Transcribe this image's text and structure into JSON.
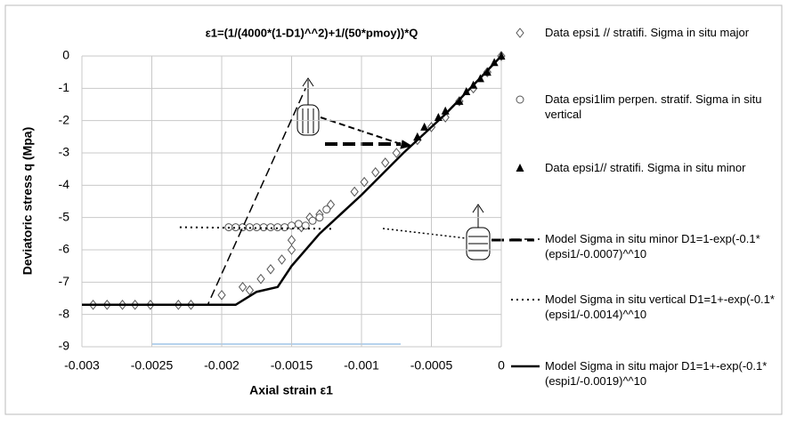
{
  "chart_data": {
    "type": "scatter",
    "title": "ε1=(1/(4000*(1-D1)^^2)+1/(50*pmoy))*Q",
    "x_label": "Axial strain ε1",
    "y_label": "Deviatoric stress q (Mpa)",
    "xlim": [
      -0.003,
      0
    ],
    "xticks": [
      -0.003,
      -0.0025,
      -0.002,
      -0.0015,
      -0.001,
      -0.0005,
      0
    ],
    "ylim": [
      -9,
      0
    ],
    "yticks": [
      0,
      -1,
      -2,
      -3,
      -4,
      -5,
      -6,
      -7,
      -8,
      -9
    ],
    "grid": true,
    "series": [
      {
        "name": "Data epsi1 // stratifi. Sigma in situ major",
        "color": "#555555",
        "marker": "diamond",
        "x": [
          -0.00292,
          -0.00282,
          -0.00271,
          -0.00262,
          -0.00251,
          -0.00231,
          -0.00222,
          -0.002,
          -0.00185,
          -0.0018,
          -0.00172,
          -0.00165,
          -0.00157,
          -0.0015,
          -0.0015,
          -0.00143,
          -0.00137,
          -0.0013,
          -0.00122,
          -0.00105,
          -0.00098,
          -0.0009,
          -0.00083,
          -0.00075,
          -0.0006,
          -0.0005,
          -0.0004,
          -0.0003,
          -0.0002,
          -0.0001,
          0
        ],
        "values": [
          -7.7,
          -7.7,
          -7.7,
          -7.7,
          -7.7,
          -7.7,
          -7.7,
          -7.4,
          -7.15,
          -7.25,
          -6.9,
          -6.6,
          -6.3,
          -6.0,
          -5.7,
          -5.3,
          -5.0,
          -4.9,
          -4.6,
          -4.2,
          -3.9,
          -3.6,
          -3.3,
          -3.0,
          -2.6,
          -2.2,
          -1.9,
          -1.4,
          -1.0,
          -0.5,
          0
        ]
      },
      {
        "name": "Data epsi1lim perpen. stratif. Sigma in situ vertical",
        "color": "#555555",
        "marker": "circle",
        "x": [
          -0.00195,
          -0.0019,
          -0.00185,
          -0.0018,
          -0.00175,
          -0.0017,
          -0.00165,
          -0.0016,
          -0.00155,
          -0.0015,
          -0.00145,
          -0.0014,
          -0.00135,
          -0.0013,
          -0.00125
        ],
        "values": [
          -5.3,
          -5.3,
          -5.3,
          -5.3,
          -5.3,
          -5.3,
          -5.3,
          -5.3,
          -5.3,
          -5.25,
          -5.2,
          -5.25,
          -5.1,
          -5.0,
          -4.75
        ]
      },
      {
        "name": "Data epsi1// stratifi. Sigma in situ minor",
        "color": "#000000",
        "marker": "triangle",
        "x": [
          -0.0006,
          -0.00055,
          -0.00045,
          -0.0004,
          -0.0003,
          -0.00025,
          -0.0002,
          -0.00015,
          -0.0001,
          -5e-05,
          0
        ],
        "values": [
          -2.5,
          -2.2,
          -1.9,
          -1.7,
          -1.4,
          -1.1,
          -0.9,
          -0.7,
          -0.5,
          -0.2,
          0
        ]
      },
      {
        "name": "Model Sigma in situ minor D1=1-exp(-0.1*(epsi1/-0.0007)^^10",
        "color": "#000000",
        "marker": "line",
        "line_style": "dashed",
        "line_width": 1.5,
        "x": [
          -0.003,
          -0.0021,
          -0.0014
        ],
        "values": [
          -7.7,
          -7.7,
          -1.0
        ]
      },
      {
        "name": "Model Sigma in situ vertical D1=1+-exp(-0.1*(epsi1/-0.0014)^^10",
        "color": "#000000",
        "marker": "line",
        "line_style": "dotted",
        "line_width": 2,
        "x": [
          -0.0023,
          -0.0012
        ],
        "values": [
          -5.3,
          -5.35
        ]
      },
      {
        "name": "Model Sigma in situ major D1=1+-exp(-0.1*(espi1/-0.0019)^^10",
        "color": "#000000",
        "marker": "line",
        "line_style": "solid",
        "line_width": 2.5,
        "x": [
          -0.003,
          -0.0019,
          -0.00175,
          -0.0016,
          -0.0015,
          -0.0013,
          -0.001,
          -0.0007,
          -0.0004,
          -0.0002,
          0
        ],
        "values": [
          -7.7,
          -7.7,
          -7.3,
          -7.15,
          -6.5,
          -5.5,
          -4.3,
          -3.0,
          -1.8,
          -0.9,
          0
        ]
      }
    ]
  }
}
